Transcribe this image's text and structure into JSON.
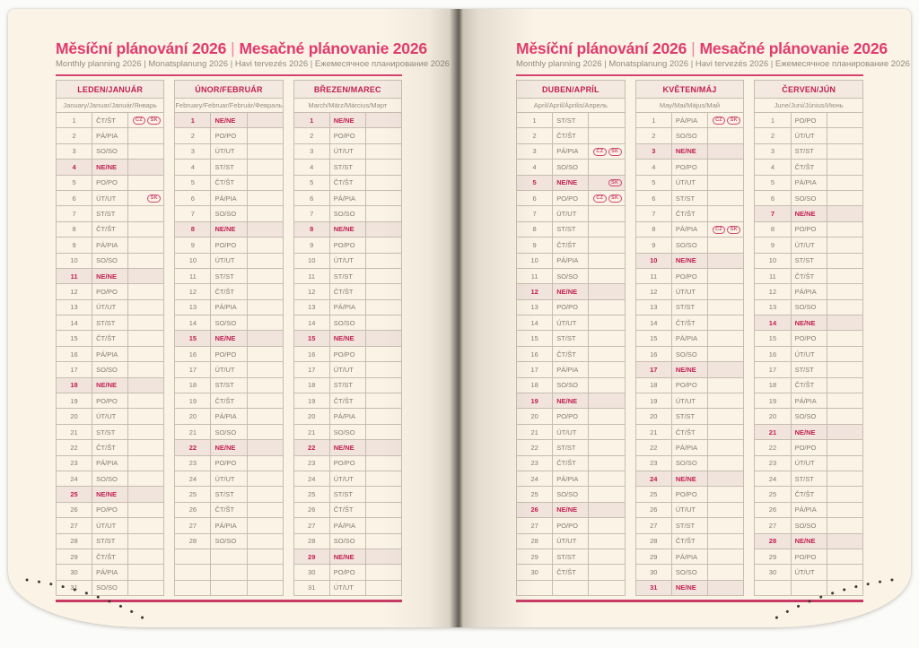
{
  "header": {
    "title_cz": "Měsíční plánování 2026",
    "separator": "|",
    "title_sk": "Mesačné plánovanie 2026",
    "subtitle": "Monthly planning 2026 | Monatsplanung 2026 | Havi tervezés 2026 | Ежемесячное планирование 2026"
  },
  "colors": {
    "accent_pink": "#e23a6d",
    "crimson": "#c32052",
    "sunday_bg": "#f1e4dd",
    "page_bg": "#faf3e6",
    "border": "#c6bdae"
  },
  "badge_labels": {
    "cz": "CZ",
    "sk": "SK"
  },
  "months": [
    {
      "name": "LEDEN/JANUÁR",
      "subtitle": "January/Januar/Január/Январь",
      "rows": [
        {
          "n": 1,
          "w": "ČT/ŠT",
          "b": [
            "CZ",
            "SK"
          ]
        },
        {
          "n": 2,
          "w": "PÁ/PIA"
        },
        {
          "n": 3,
          "w": "SO/SO"
        },
        {
          "n": 4,
          "w": "NE/NE"
        },
        {
          "n": 5,
          "w": "PO/PO"
        },
        {
          "n": 6,
          "w": "ÚT/UT",
          "b": [
            "SK"
          ]
        },
        {
          "n": 7,
          "w": "ST/ST"
        },
        {
          "n": 8,
          "w": "ČT/ŠT"
        },
        {
          "n": 9,
          "w": "PÁ/PIA"
        },
        {
          "n": 10,
          "w": "SO/SO"
        },
        {
          "n": 11,
          "w": "NE/NE"
        },
        {
          "n": 12,
          "w": "PO/PO"
        },
        {
          "n": 13,
          "w": "ÚT/UT"
        },
        {
          "n": 14,
          "w": "ST/ST"
        },
        {
          "n": 15,
          "w": "ČT/ŠT"
        },
        {
          "n": 16,
          "w": "PÁ/PIA"
        },
        {
          "n": 17,
          "w": "SO/SO"
        },
        {
          "n": 18,
          "w": "NE/NE"
        },
        {
          "n": 19,
          "w": "PO/PO"
        },
        {
          "n": 20,
          "w": "ÚT/UT"
        },
        {
          "n": 21,
          "w": "ST/ST"
        },
        {
          "n": 22,
          "w": "ČT/ŠT"
        },
        {
          "n": 23,
          "w": "PÁ/PIA"
        },
        {
          "n": 24,
          "w": "SO/SO"
        },
        {
          "n": 25,
          "w": "NE/NE"
        },
        {
          "n": 26,
          "w": "PO/PO"
        },
        {
          "n": 27,
          "w": "ÚT/UT"
        },
        {
          "n": 28,
          "w": "ST/ST"
        },
        {
          "n": 29,
          "w": "ČT/ŠT"
        },
        {
          "n": 30,
          "w": "PÁ/PIA"
        },
        {
          "n": 31,
          "w": "SO/SO"
        }
      ]
    },
    {
      "name": "ÚNOR/FEBRUÁR",
      "subtitle": "February/Februar/Február/Февраль",
      "rows": [
        {
          "n": 1,
          "w": "NE/NE"
        },
        {
          "n": 2,
          "w": "PO/PO"
        },
        {
          "n": 3,
          "w": "ÚT/UT"
        },
        {
          "n": 4,
          "w": "ST/ST"
        },
        {
          "n": 5,
          "w": "ČT/ŠT"
        },
        {
          "n": 6,
          "w": "PÁ/PIA"
        },
        {
          "n": 7,
          "w": "SO/SO"
        },
        {
          "n": 8,
          "w": "NE/NE"
        },
        {
          "n": 9,
          "w": "PO/PO"
        },
        {
          "n": 10,
          "w": "ÚT/UT"
        },
        {
          "n": 11,
          "w": "ST/ST"
        },
        {
          "n": 12,
          "w": "ČT/ŠT"
        },
        {
          "n": 13,
          "w": "PÁ/PIA"
        },
        {
          "n": 14,
          "w": "SO/SO"
        },
        {
          "n": 15,
          "w": "NE/NE"
        },
        {
          "n": 16,
          "w": "PO/PO"
        },
        {
          "n": 17,
          "w": "ÚT/UT"
        },
        {
          "n": 18,
          "w": "ST/ST"
        },
        {
          "n": 19,
          "w": "ČT/ŠT"
        },
        {
          "n": 20,
          "w": "PÁ/PIA"
        },
        {
          "n": 21,
          "w": "SO/SO"
        },
        {
          "n": 22,
          "w": "NE/NE"
        },
        {
          "n": 23,
          "w": "PO/PO"
        },
        {
          "n": 24,
          "w": "ÚT/UT"
        },
        {
          "n": 25,
          "w": "ST/ST"
        },
        {
          "n": 26,
          "w": "ČT/ŠT"
        },
        {
          "n": 27,
          "w": "PÁ/PIA"
        },
        {
          "n": 28,
          "w": "SO/SO"
        },
        {
          "n": "",
          "w": ""
        },
        {
          "n": "",
          "w": ""
        },
        {
          "n": "",
          "w": ""
        }
      ]
    },
    {
      "name": "BŘEZEN/MAREC",
      "subtitle": "March/März/Március/Март",
      "rows": [
        {
          "n": 1,
          "w": "NE/NE"
        },
        {
          "n": 2,
          "w": "PO/PO"
        },
        {
          "n": 3,
          "w": "ÚT/UT"
        },
        {
          "n": 4,
          "w": "ST/ST"
        },
        {
          "n": 5,
          "w": "ČT/ŠT"
        },
        {
          "n": 6,
          "w": "PÁ/PIA"
        },
        {
          "n": 7,
          "w": "SO/SO"
        },
        {
          "n": 8,
          "w": "NE/NE"
        },
        {
          "n": 9,
          "w": "PO/PO"
        },
        {
          "n": 10,
          "w": "ÚT/UT"
        },
        {
          "n": 11,
          "w": "ST/ST"
        },
        {
          "n": 12,
          "w": "ČT/ŠT"
        },
        {
          "n": 13,
          "w": "PÁ/PIA"
        },
        {
          "n": 14,
          "w": "SO/SO"
        },
        {
          "n": 15,
          "w": "NE/NE"
        },
        {
          "n": 16,
          "w": "PO/PO"
        },
        {
          "n": 17,
          "w": "ÚT/UT"
        },
        {
          "n": 18,
          "w": "ST/ST"
        },
        {
          "n": 19,
          "w": "ČT/ŠT"
        },
        {
          "n": 20,
          "w": "PÁ/PIA"
        },
        {
          "n": 21,
          "w": "SO/SO"
        },
        {
          "n": 22,
          "w": "NE/NE"
        },
        {
          "n": 23,
          "w": "PO/PO"
        },
        {
          "n": 24,
          "w": "ÚT/UT"
        },
        {
          "n": 25,
          "w": "ST/ST"
        },
        {
          "n": 26,
          "w": "ČT/ŠT"
        },
        {
          "n": 27,
          "w": "PÁ/PIA"
        },
        {
          "n": 28,
          "w": "SO/SO"
        },
        {
          "n": 29,
          "w": "NE/NE"
        },
        {
          "n": 30,
          "w": "PO/PO"
        },
        {
          "n": 31,
          "w": "ÚT/UT"
        }
      ]
    },
    {
      "name": "DUBEN/APRÍL",
      "subtitle": "April/April/Április/Апрель",
      "rows": [
        {
          "n": 1,
          "w": "ST/ST"
        },
        {
          "n": 2,
          "w": "ČT/ŠT"
        },
        {
          "n": 3,
          "w": "PÁ/PIA",
          "b": [
            "CZ",
            "SK"
          ]
        },
        {
          "n": 4,
          "w": "SO/SO"
        },
        {
          "n": 5,
          "w": "NE/NE",
          "b": [
            "SK"
          ]
        },
        {
          "n": 6,
          "w": "PO/PO",
          "b": [
            "CZ",
            "SK"
          ]
        },
        {
          "n": 7,
          "w": "ÚT/UT"
        },
        {
          "n": 8,
          "w": "ST/ST"
        },
        {
          "n": 9,
          "w": "ČT/ŠT"
        },
        {
          "n": 10,
          "w": "PÁ/PIA"
        },
        {
          "n": 11,
          "w": "SO/SO"
        },
        {
          "n": 12,
          "w": "NE/NE"
        },
        {
          "n": 13,
          "w": "PO/PO"
        },
        {
          "n": 14,
          "w": "ÚT/UT"
        },
        {
          "n": 15,
          "w": "ST/ST"
        },
        {
          "n": 16,
          "w": "ČT/ŠT"
        },
        {
          "n": 17,
          "w": "PÁ/PIA"
        },
        {
          "n": 18,
          "w": "SO/SO"
        },
        {
          "n": 19,
          "w": "NE/NE"
        },
        {
          "n": 20,
          "w": "PO/PO"
        },
        {
          "n": 21,
          "w": "ÚT/UT"
        },
        {
          "n": 22,
          "w": "ST/ST"
        },
        {
          "n": 23,
          "w": "ČT/ŠT"
        },
        {
          "n": 24,
          "w": "PÁ/PIA"
        },
        {
          "n": 25,
          "w": "SO/SO"
        },
        {
          "n": 26,
          "w": "NE/NE"
        },
        {
          "n": 27,
          "w": "PO/PO"
        },
        {
          "n": 28,
          "w": "ÚT/UT"
        },
        {
          "n": 29,
          "w": "ST/ST"
        },
        {
          "n": 30,
          "w": "ČT/ŠT"
        },
        {
          "n": "",
          "w": ""
        }
      ]
    },
    {
      "name": "KVĚTEN/MÁJ",
      "subtitle": "May/Mai/Május/Май",
      "rows": [
        {
          "n": 1,
          "w": "PÁ/PIA",
          "b": [
            "CZ",
            "SK"
          ]
        },
        {
          "n": 2,
          "w": "SO/SO"
        },
        {
          "n": 3,
          "w": "NE/NE"
        },
        {
          "n": 4,
          "w": "PO/PO"
        },
        {
          "n": 5,
          "w": "ÚT/UT"
        },
        {
          "n": 6,
          "w": "ST/ST"
        },
        {
          "n": 7,
          "w": "ČT/ŠT"
        },
        {
          "n": 8,
          "w": "PÁ/PIA",
          "b": [
            "CZ",
            "SK"
          ]
        },
        {
          "n": 9,
          "w": "SO/SO"
        },
        {
          "n": 10,
          "w": "NE/NE"
        },
        {
          "n": 11,
          "w": "PO/PO"
        },
        {
          "n": 12,
          "w": "ÚT/UT"
        },
        {
          "n": 13,
          "w": "ST/ST"
        },
        {
          "n": 14,
          "w": "ČT/ŠT"
        },
        {
          "n": 15,
          "w": "PÁ/PIA"
        },
        {
          "n": 16,
          "w": "SO/SO"
        },
        {
          "n": 17,
          "w": "NE/NE"
        },
        {
          "n": 18,
          "w": "PO/PO"
        },
        {
          "n": 19,
          "w": "ÚT/UT"
        },
        {
          "n": 20,
          "w": "ST/ST"
        },
        {
          "n": 21,
          "w": "ČT/ŠT"
        },
        {
          "n": 22,
          "w": "PÁ/PIA"
        },
        {
          "n": 23,
          "w": "SO/SO"
        },
        {
          "n": 24,
          "w": "NE/NE"
        },
        {
          "n": 25,
          "w": "PO/PO"
        },
        {
          "n": 26,
          "w": "ÚT/UT"
        },
        {
          "n": 27,
          "w": "ST/ST"
        },
        {
          "n": 28,
          "w": "ČT/ŠT"
        },
        {
          "n": 29,
          "w": "PÁ/PIA"
        },
        {
          "n": 30,
          "w": "SO/SO"
        },
        {
          "n": 31,
          "w": "NE/NE"
        }
      ]
    },
    {
      "name": "ČERVEN/JÚN",
      "subtitle": "June/Juni/Június/Июнь",
      "rows": [
        {
          "n": 1,
          "w": "PO/PO"
        },
        {
          "n": 2,
          "w": "ÚT/UT"
        },
        {
          "n": 3,
          "w": "ST/ST"
        },
        {
          "n": 4,
          "w": "ČT/ŠT"
        },
        {
          "n": 5,
          "w": "PÁ/PIA"
        },
        {
          "n": 6,
          "w": "SO/SO"
        },
        {
          "n": 7,
          "w": "NE/NE"
        },
        {
          "n": 8,
          "w": "PO/PO"
        },
        {
          "n": 9,
          "w": "ÚT/UT"
        },
        {
          "n": 10,
          "w": "ST/ST"
        },
        {
          "n": 11,
          "w": "ČT/ŠT"
        },
        {
          "n": 12,
          "w": "PÁ/PIA"
        },
        {
          "n": 13,
          "w": "SO/SO"
        },
        {
          "n": 14,
          "w": "NE/NE"
        },
        {
          "n": 15,
          "w": "PO/PO"
        },
        {
          "n": 16,
          "w": "ÚT/UT"
        },
        {
          "n": 17,
          "w": "ST/ST"
        },
        {
          "n": 18,
          "w": "ČT/ŠT"
        },
        {
          "n": 19,
          "w": "PÁ/PIA"
        },
        {
          "n": 20,
          "w": "SO/SO"
        },
        {
          "n": 21,
          "w": "NE/NE"
        },
        {
          "n": 22,
          "w": "PO/PO"
        },
        {
          "n": 23,
          "w": "ÚT/UT"
        },
        {
          "n": 24,
          "w": "ST/ST"
        },
        {
          "n": 25,
          "w": "ČT/ŠT"
        },
        {
          "n": 26,
          "w": "PÁ/PIA"
        },
        {
          "n": 27,
          "w": "SO/SO"
        },
        {
          "n": 28,
          "w": "NE/NE"
        },
        {
          "n": 29,
          "w": "PO/PO"
        },
        {
          "n": 30,
          "w": "ÚT/UT"
        },
        {
          "n": "",
          "w": ""
        }
      ]
    }
  ]
}
